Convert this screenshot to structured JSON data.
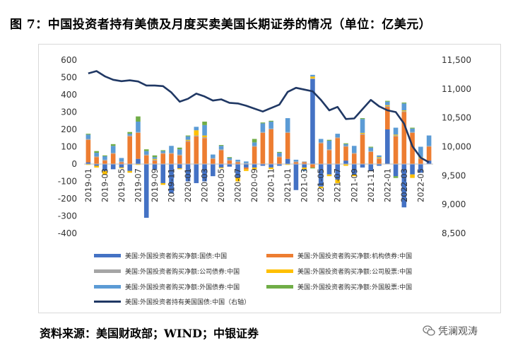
{
  "title": "图 7：中国投资者持有美债及月度买卖美国长期证券的情况（单位：亿美元）",
  "source": "资料来源：美国财政部；WIND；中银证券",
  "watermark": "凭澜观涛",
  "colors": {
    "treasury": "#4472C4",
    "agency": "#ED7D31",
    "corporate_bond": "#A5A5A5",
    "corporate_equity": "#FFC000",
    "foreign_bond": "#5B9BD5",
    "foreign_equity": "#70AD47",
    "holdings_line": "#203864"
  },
  "chart_data": {
    "type": "bar",
    "stacked": true,
    "left_axis": {
      "ylim": [
        -400,
        600
      ],
      "ticks": [
        "600",
        "500",
        "400",
        "300",
        "200",
        "100",
        "0",
        "-100",
        "-200",
        "-300",
        "-400"
      ]
    },
    "right_axis": {
      "ylim": [
        8500,
        11500
      ],
      "ticks": [
        "11,500",
        "11,000",
        "10,500",
        "10,000",
        "9,500",
        "9,000",
        "8,500"
      ]
    },
    "x_labels_shown": [
      "2019-01",
      "2019-03",
      "2019-05",
      "2019-07",
      "2019-09",
      "2019-11",
      "2020-01",
      "2020-03",
      "2020-05",
      "2020-07",
      "2020-09",
      "2020-11",
      "2021-01",
      "2021-03",
      "2021-05",
      "2021-07",
      "2021-09",
      "2021-11",
      "2022-01",
      "2022-03",
      "2022-05"
    ],
    "categories": [
      "2019-01",
      "2019-02",
      "2019-03",
      "2019-04",
      "2019-05",
      "2019-06",
      "2019-07",
      "2019-08",
      "2019-09",
      "2019-10",
      "2019-11",
      "2019-12",
      "2020-01",
      "2020-02",
      "2020-03",
      "2020-04",
      "2020-05",
      "2020-06",
      "2020-07",
      "2020-08",
      "2020-09",
      "2020-10",
      "2020-11",
      "2020-12",
      "2021-01",
      "2021-02",
      "2021-03",
      "2021-04",
      "2021-05",
      "2021-06",
      "2021-07",
      "2021-08",
      "2021-09",
      "2021-10",
      "2021-11",
      "2021-12",
      "2022-01",
      "2022-02",
      "2022-03",
      "2022-04",
      "2022-05",
      "2022-06"
    ],
    "series": [
      {
        "name": "美国:外国投资者购买净额:国债:中国",
        "key": "treasury",
        "values": [
          10,
          -10,
          -40,
          -30,
          -20,
          -40,
          30,
          -310,
          -30,
          -110,
          -170,
          -25,
          -100,
          -110,
          -100,
          -70,
          -20,
          -15,
          -80,
          -20,
          -20,
          -10,
          -20,
          -10,
          30,
          -150,
          -20,
          490,
          -130,
          -60,
          -90,
          20,
          -60,
          -20,
          -40,
          -10,
          200,
          -70,
          -250,
          -60,
          -50,
          20
        ]
      },
      {
        "name": "美国:外国投资者购买净额:机构债券:中国",
        "key": "agency",
        "values": [
          130,
          40,
          20,
          60,
          10,
          160,
          150,
          50,
          20,
          60,
          60,
          50,
          130,
          160,
          150,
          30,
          80,
          20,
          10,
          -10,
          100,
          180,
          200,
          40,
          150,
          10,
          10,
          -20,
          120,
          80,
          150,
          80,
          60,
          170,
          70,
          30,
          130,
          160,
          300,
          180,
          30,
          80
        ]
      },
      {
        "name": "美国:外国投资者购买净额:公司债券:中国",
        "key": "corporate_bond",
        "values": [
          5,
          5,
          5,
          5,
          5,
          5,
          5,
          5,
          5,
          5,
          5,
          5,
          5,
          5,
          5,
          5,
          5,
          5,
          5,
          5,
          5,
          5,
          5,
          5,
          5,
          5,
          5,
          5,
          5,
          5,
          5,
          5,
          5,
          5,
          5,
          5,
          5,
          5,
          5,
          5,
          5,
          5
        ]
      },
      {
        "name": "美国:外国投资者购买净额:公司股票:中国",
        "key": "corporate_equity",
        "values": [
          -5,
          -10,
          -20,
          0,
          -5,
          -10,
          -5,
          0,
          5,
          -10,
          0,
          -5,
          5,
          30,
          10,
          0,
          -5,
          0,
          -20,
          -10,
          -10,
          0,
          -10,
          0,
          -5,
          0,
          -10,
          10,
          -10,
          -10,
          -20,
          -10,
          -10,
          5,
          0,
          5,
          5,
          5,
          5,
          -20,
          5,
          0
        ]
      },
      {
        "name": "美国:外国投资者购买净额:外国债券:中国",
        "key": "foreign_bond",
        "values": [
          25,
          20,
          20,
          40,
          20,
          10,
          60,
          20,
          10,
          10,
          40,
          30,
          20,
          20,
          60,
          20,
          20,
          10,
          10,
          10,
          20,
          50,
          40,
          20,
          80,
          10,
          -10,
          10,
          20,
          50,
          20,
          10,
          40,
          80,
          20,
          10,
          20,
          40,
          40,
          20,
          60,
          60
        ]
      },
      {
        "name": "美国:外国投资者购买净额:外国股票:中国",
        "key": "foreign_equity",
        "values": [
          5,
          10,
          5,
          10,
          0,
          10,
          30,
          10,
          10,
          5,
          0,
          10,
          5,
          0,
          20,
          0,
          5,
          5,
          0,
          0,
          20,
          5,
          5,
          5,
          0,
          0,
          0,
          -5,
          0,
          5,
          0,
          5,
          0,
          5,
          5,
          0,
          5,
          -10,
          5,
          5,
          0,
          0
        ]
      }
    ],
    "line": {
      "name": "美国:外国投资者持有美国国债:中国（右轴）",
      "axis": "right",
      "values": [
        11270,
        11310,
        11220,
        11160,
        11135,
        11150,
        11130,
        11060,
        11060,
        11050,
        10940,
        10780,
        10830,
        10920,
        10870,
        10800,
        10820,
        10760,
        10750,
        10710,
        10660,
        10610,
        10670,
        10730,
        10950,
        11020,
        10990,
        10960,
        10810,
        10630,
        10690,
        10480,
        10490,
        10650,
        10810,
        10700,
        10630,
        10600,
        10400,
        10010,
        9810,
        9730
      ]
    }
  },
  "legend_entries": [
    {
      "label": "美国:外国投资者购买净额:国债:中国",
      "key": "treasury",
      "kind": "bar"
    },
    {
      "label": "美国:外国投资者购买净额:机构债券:中国",
      "key": "agency",
      "kind": "bar"
    },
    {
      "label": "美国:外国投资者购买净额:公司债券:中国",
      "key": "corporate_bond",
      "kind": "bar"
    },
    {
      "label": "美国:外国投资者购买净额:公司股票:中国",
      "key": "corporate_equity",
      "kind": "bar"
    },
    {
      "label": "美国:外国投资者购买净额:外国债券:中国",
      "key": "foreign_bond",
      "kind": "bar"
    },
    {
      "label": "美国:外国投资者购买净额:外国股票:中国",
      "key": "foreign_equity",
      "kind": "bar"
    },
    {
      "label": "美国:外国投资者持有美国国债:中国（右轴）",
      "key": "holdings_line",
      "kind": "line"
    }
  ]
}
